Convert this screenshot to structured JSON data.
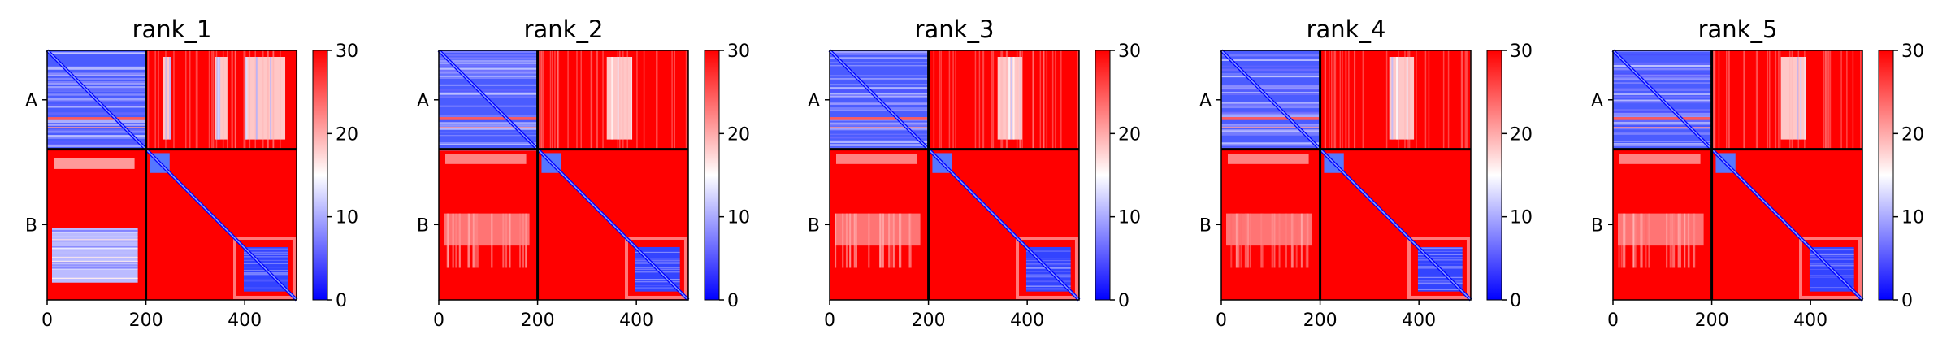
{
  "chart_data": [
    {
      "type": "heatmap",
      "title": "rank_1",
      "chains": [
        "A",
        "B"
      ],
      "chain_boundary": 200,
      "xticks": [
        0,
        200,
        400
      ],
      "xlim": [
        0,
        505
      ],
      "colorbar": {
        "range": [
          0,
          30
        ],
        "ticks": [
          0,
          10,
          20,
          30
        ],
        "colors": [
          "#0000ff",
          "#ffffff",
          "#ff0000"
        ]
      },
      "regions": {
        "A_intra": "low error (blue) with a red stripe near residue 140",
        "A_to_B": "mostly red, white columns near residues 235-245, 345-365, 405-480",
        "B_to_A": "white/blue block at residues 360-470 spanning chain A",
        "B_intra": "red with blue diagonal and blue domain block at residues 400-480"
      }
    },
    {
      "type": "heatmap",
      "title": "rank_2",
      "chains": [
        "A",
        "B"
      ],
      "chain_boundary": 200,
      "xticks": [
        0,
        200,
        400
      ],
      "xlim": [
        0,
        505
      ],
      "colorbar": {
        "range": [
          0,
          30
        ],
        "ticks": [
          0,
          10,
          20,
          30
        ],
        "colors": [
          "#0000ff",
          "#ffffff",
          "#ff0000"
        ]
      },
      "regions": {
        "A_intra": "low error (blue) with a red stripe near residue 140",
        "A_to_B": "mostly red, white columns near residues 345-385",
        "B_to_A": "mostly red with white bands near residues 330-390",
        "B_intra": "red with blue diagonal and blue domain block at residues 400-480"
      }
    },
    {
      "type": "heatmap",
      "title": "rank_3",
      "chains": [
        "A",
        "B"
      ],
      "chain_boundary": 200,
      "xticks": [
        0,
        200,
        400
      ],
      "xlim": [
        0,
        505
      ],
      "colorbar": {
        "range": [
          0,
          30
        ],
        "ticks": [
          0,
          10,
          20,
          30
        ],
        "colors": [
          "#0000ff",
          "#ffffff",
          "#ff0000"
        ]
      },
      "regions": {
        "A_intra": "low error (blue) with a red stripe near residue 140",
        "A_to_B": "mostly red, white columns near residues 345-385",
        "B_to_A": "mostly red with white bands near residues 330-390",
        "B_intra": "red with blue diagonal and blue domain block at residues 400-480"
      }
    },
    {
      "type": "heatmap",
      "title": "rank_4",
      "chains": [
        "A",
        "B"
      ],
      "chain_boundary": 200,
      "xticks": [
        0,
        200,
        400
      ],
      "xlim": [
        0,
        505
      ],
      "colorbar": {
        "range": [
          0,
          30
        ],
        "ticks": [
          0,
          10,
          20,
          30
        ],
        "colors": [
          "#0000ff",
          "#ffffff",
          "#ff0000"
        ]
      },
      "regions": {
        "A_intra": "low error (blue) with a red stripe near residue 140",
        "A_to_B": "mostly red, white columns near residues 345-385",
        "B_to_A": "mostly red with white bands near residues 330-390",
        "B_intra": "red with blue diagonal and blue domain block at residues 400-480"
      }
    },
    {
      "type": "heatmap",
      "title": "rank_5",
      "chains": [
        "A",
        "B"
      ],
      "chain_boundary": 200,
      "xticks": [
        0,
        200,
        400
      ],
      "xlim": [
        0,
        505
      ],
      "colorbar": {
        "range": [
          0,
          30
        ],
        "ticks": [
          0,
          10,
          20,
          30
        ],
        "colors": [
          "#0000ff",
          "#ffffff",
          "#ff0000"
        ]
      },
      "regions": {
        "A_intra": "low error (blue) with a red stripe near residue 140",
        "A_to_B": "mostly red, white columns near residues 345-385",
        "B_to_A": "mostly red with white bands near residues 330-390",
        "B_intra": "red with blue diagonal and blue domain block at residues 400-480"
      }
    }
  ]
}
